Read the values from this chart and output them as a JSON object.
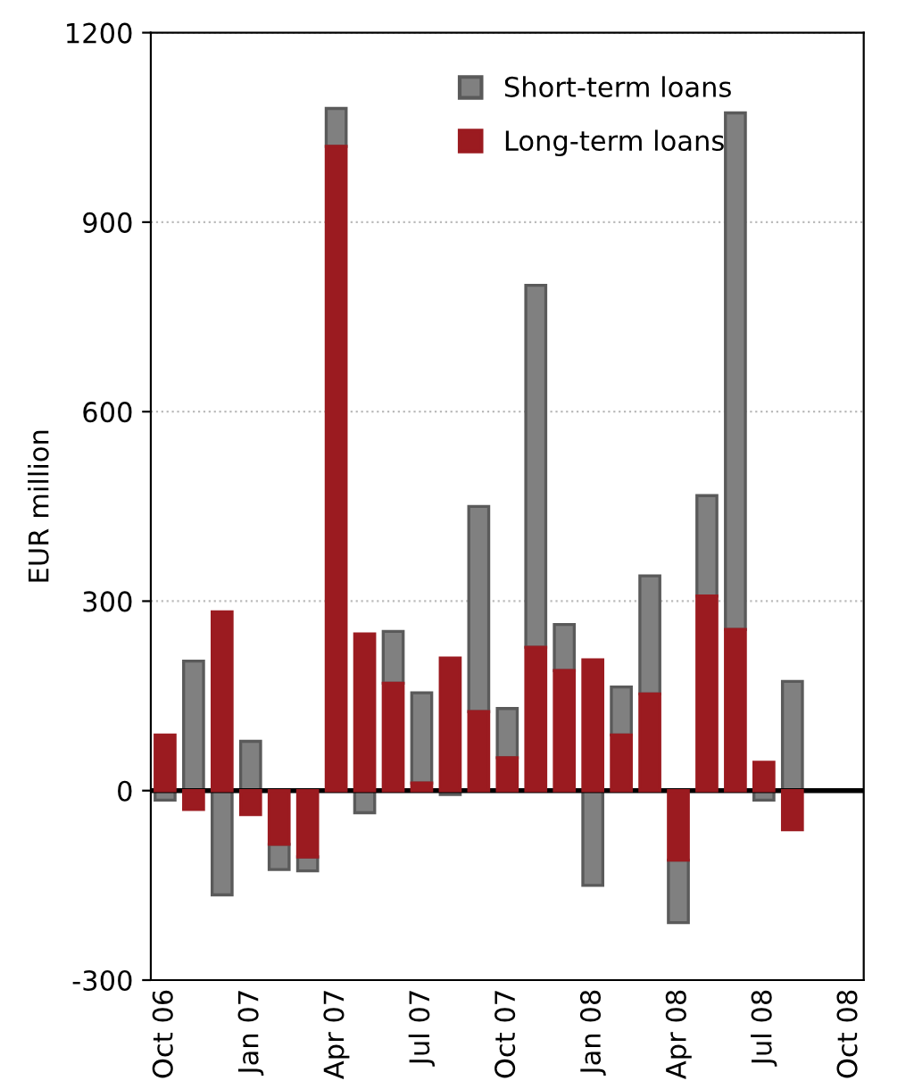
{
  "chart_data": {
    "type": "bar",
    "stacked": true,
    "ylabel": "EUR million",
    "categories": [
      "Oct 06",
      null,
      null,
      "Jan 07",
      null,
      null,
      "Apr 07",
      null,
      null,
      "Jul 07",
      null,
      null,
      "Oct 07",
      null,
      null,
      "Jan 08",
      null,
      null,
      "Apr 08",
      null,
      null,
      "Jul 08",
      null,
      null,
      "Oct 08"
    ],
    "series": [
      {
        "name": "Long-term loans",
        "color": "#9b1b20",
        "values": [
          88,
          -30,
          283,
          -38,
          -85,
          -105,
          1020,
          248,
          170,
          12,
          210,
          125,
          52,
          227,
          190,
          207,
          88,
          153,
          -110,
          308,
          255,
          45,
          -62,
          null,
          null
        ]
      },
      {
        "name": "Short-term loans",
        "color": "#808080",
        "values": [
          -15,
          205,
          -165,
          78,
          -40,
          -22,
          60,
          -35,
          82,
          143,
          -6,
          325,
          78,
          573,
          73,
          -150,
          76,
          187,
          -99,
          159,
          818,
          -15,
          173,
          null,
          null
        ]
      }
    ],
    "ylim": [
      -300,
      1200
    ],
    "yticks": [
      -300,
      0,
      300,
      600,
      900,
      1200
    ],
    "grid": "y",
    "legend": "top right",
    "ref_lines": [
      {
        "axis": "y",
        "value": 0,
        "color": "#000000"
      }
    ]
  }
}
